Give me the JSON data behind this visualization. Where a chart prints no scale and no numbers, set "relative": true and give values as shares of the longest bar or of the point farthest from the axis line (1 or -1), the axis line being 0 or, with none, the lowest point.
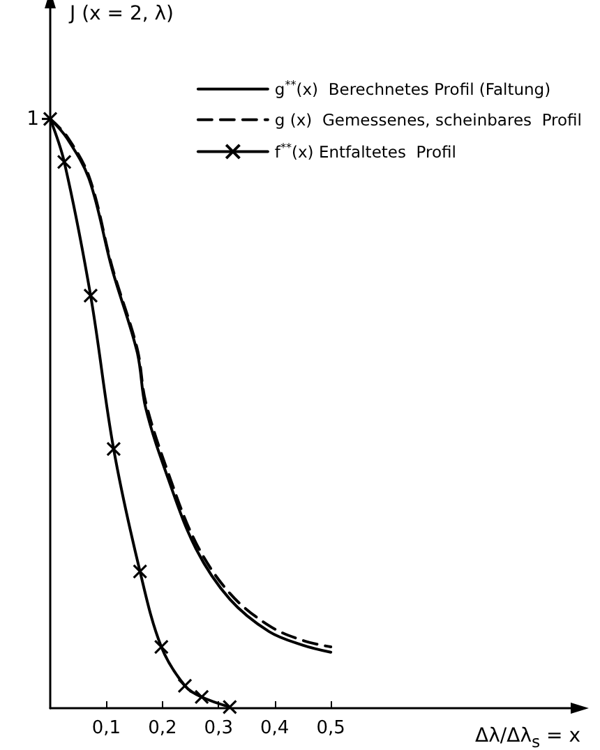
{
  "chart_data": {
    "type": "line",
    "relative": true,
    "ylabel": "J (x = 2, λ)",
    "xlabel": "Δλ/Δλ$_{s}$ = x",
    "xlim": [
      0,
      0.93
    ],
    "xticks": [
      {
        "value": 0.1,
        "label": "0,1"
      },
      {
        "value": 0.2,
        "label": "0,2"
      },
      {
        "value": 0.3,
        "label": "0,3"
      },
      {
        "value": 0.4,
        "label": "0,4"
      },
      {
        "value": 0.5,
        "label": "0,5"
      }
    ],
    "grid": false,
    "legend": "top right",
    "annotations": [
      {
        "text": "1",
        "x": 0,
        "y": 1
      }
    ],
    "series": [
      {
        "name": "g$^{**}$(x)  Berechnetes Profil (Faltung)",
        "color": "#000000",
        "line_style": "solid",
        "marker": "none",
        "x": [
          0,
          0.03,
          0.07,
          0.11,
          0.155,
          0.17,
          0.21,
          0.26,
          0.32,
          0.39,
          0.45,
          0.5
        ],
        "values": [
          1,
          0.967,
          0.896,
          0.746,
          0.604,
          0.51,
          0.39,
          0.27,
          0.185,
          0.13,
          0.107,
          0.095
        ]
      },
      {
        "name": "g (x)  Gemessenes, scheinbares  Profil",
        "color": "#000000",
        "line_style": "dashed",
        "marker": "none",
        "x": [
          0,
          0.03,
          0.07,
          0.11,
          0.155,
          0.17,
          0.21,
          0.26,
          0.32,
          0.39,
          0.45,
          0.5
        ],
        "values": [
          1,
          0.97,
          0.9,
          0.75,
          0.61,
          0.52,
          0.4,
          0.28,
          0.195,
          0.14,
          0.115,
          0.104
        ]
      },
      {
        "name": "f$^{**}$(x) Entfaltetes  Profil",
        "color": "#000000",
        "line_style": "solid",
        "marker": "cross",
        "x": [
          0,
          0.025,
          0.072,
          0.113,
          0.16,
          0.198,
          0.24,
          0.27,
          0.32
        ],
        "values": [
          1,
          0.927,
          0.7,
          0.44,
          0.232,
          0.104,
          0.038,
          0.019,
          0.002
        ]
      }
    ]
  }
}
